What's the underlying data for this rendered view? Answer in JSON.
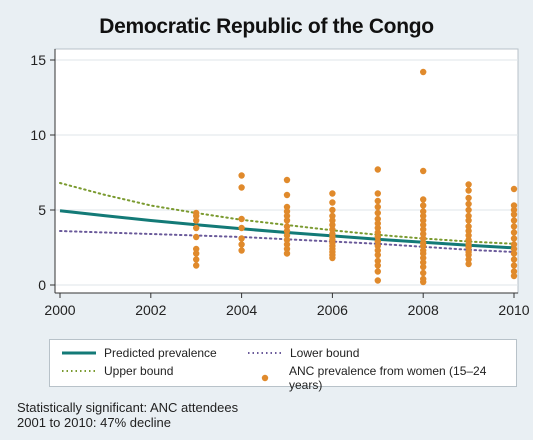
{
  "chart_data": {
    "type": "scatter",
    "title": "Democratic Republic of the Congo",
    "xlim": [
      2000,
      2010
    ],
    "ylim": [
      0,
      15
    ],
    "x_ticks": [
      "2000",
      "2002",
      "2004",
      "2006",
      "2008",
      "2010"
    ],
    "y_ticks": [
      "0",
      "5",
      "10",
      "15"
    ],
    "grid": "horizontal",
    "series": [
      {
        "name": "Predicted prevalence",
        "kind": "line",
        "style": "solid",
        "color": "#137a77",
        "x": [
          2000,
          2001,
          2002,
          2003,
          2004,
          2005,
          2006,
          2007,
          2008,
          2009,
          2010
        ],
        "y": [
          4.95,
          4.62,
          4.3,
          4.02,
          3.75,
          3.5,
          3.27,
          3.05,
          2.85,
          2.65,
          2.47
        ]
      },
      {
        "name": "Upper bound",
        "kind": "line",
        "style": "dotted",
        "color": "#7a9a2f",
        "x": [
          2000,
          2001,
          2002,
          2003,
          2004,
          2005,
          2006,
          2007,
          2008,
          2009,
          2010
        ],
        "y": [
          6.8,
          6.0,
          5.3,
          4.8,
          4.35,
          4.0,
          3.65,
          3.35,
          3.1,
          2.9,
          2.75
        ]
      },
      {
        "name": "Lower bound",
        "kind": "line",
        "style": "dotted",
        "color": "#6a5a9a",
        "x": [
          2000,
          2001,
          2002,
          2003,
          2004,
          2005,
          2006,
          2007,
          2008,
          2009,
          2010
        ],
        "y": [
          3.6,
          3.5,
          3.4,
          3.3,
          3.2,
          3.05,
          2.9,
          2.75,
          2.55,
          2.35,
          2.2
        ]
      },
      {
        "name": "ANC prevalence from women (15–24 years)",
        "kind": "scatter",
        "color": "#e08a2c",
        "points": [
          [
            2003,
            4.8
          ],
          [
            2003,
            4.6
          ],
          [
            2003,
            4.3
          ],
          [
            2003,
            3.8
          ],
          [
            2003,
            3.2
          ],
          [
            2003,
            2.4
          ],
          [
            2003,
            2.1
          ],
          [
            2003,
            1.7
          ],
          [
            2003,
            1.3
          ],
          [
            2004,
            7.3
          ],
          [
            2004,
            6.5
          ],
          [
            2004,
            4.4
          ],
          [
            2004,
            3.8
          ],
          [
            2004,
            3.1
          ],
          [
            2004,
            2.7
          ],
          [
            2004,
            2.3
          ],
          [
            2005,
            7.0
          ],
          [
            2005,
            6.0
          ],
          [
            2005,
            5.2
          ],
          [
            2005,
            4.9
          ],
          [
            2005,
            4.6
          ],
          [
            2005,
            4.3
          ],
          [
            2005,
            3.9
          ],
          [
            2005,
            3.6
          ],
          [
            2005,
            3.3
          ],
          [
            2005,
            3.0
          ],
          [
            2005,
            2.7
          ],
          [
            2005,
            2.4
          ],
          [
            2005,
            2.1
          ],
          [
            2006,
            6.1
          ],
          [
            2006,
            5.5
          ],
          [
            2006,
            5.0
          ],
          [
            2006,
            4.6
          ],
          [
            2006,
            4.3
          ],
          [
            2006,
            4.0
          ],
          [
            2006,
            3.7
          ],
          [
            2006,
            3.4
          ],
          [
            2006,
            3.2
          ],
          [
            2006,
            3.0
          ],
          [
            2006,
            2.8
          ],
          [
            2006,
            2.6
          ],
          [
            2006,
            2.4
          ],
          [
            2006,
            2.2
          ],
          [
            2006,
            2.0
          ],
          [
            2006,
            1.8
          ],
          [
            2007,
            7.7
          ],
          [
            2007,
            6.1
          ],
          [
            2007,
            5.6
          ],
          [
            2007,
            5.2
          ],
          [
            2007,
            4.8
          ],
          [
            2007,
            4.4
          ],
          [
            2007,
            4.1
          ],
          [
            2007,
            3.8
          ],
          [
            2007,
            3.5
          ],
          [
            2007,
            3.2
          ],
          [
            2007,
            2.9
          ],
          [
            2007,
            2.6
          ],
          [
            2007,
            2.3
          ],
          [
            2007,
            2.0
          ],
          [
            2007,
            1.6
          ],
          [
            2007,
            1.3
          ],
          [
            2007,
            0.9
          ],
          [
            2007,
            0.3
          ],
          [
            2008,
            14.2
          ],
          [
            2008,
            7.6
          ],
          [
            2008,
            5.7
          ],
          [
            2008,
            5.3
          ],
          [
            2008,
            4.9
          ],
          [
            2008,
            4.6
          ],
          [
            2008,
            4.3
          ],
          [
            2008,
            4.0
          ],
          [
            2008,
            3.7
          ],
          [
            2008,
            3.4
          ],
          [
            2008,
            3.1
          ],
          [
            2008,
            2.8
          ],
          [
            2008,
            2.6
          ],
          [
            2008,
            2.3
          ],
          [
            2008,
            2.1
          ],
          [
            2008,
            1.8
          ],
          [
            2008,
            1.5
          ],
          [
            2008,
            1.2
          ],
          [
            2008,
            0.8
          ],
          [
            2008,
            0.4
          ],
          [
            2008,
            0.2
          ],
          [
            2009,
            6.7
          ],
          [
            2009,
            6.3
          ],
          [
            2009,
            5.8
          ],
          [
            2009,
            5.4
          ],
          [
            2009,
            5.0
          ],
          [
            2009,
            4.6
          ],
          [
            2009,
            4.3
          ],
          [
            2009,
            3.9
          ],
          [
            2009,
            3.6
          ],
          [
            2009,
            3.3
          ],
          [
            2009,
            3.0
          ],
          [
            2009,
            2.7
          ],
          [
            2009,
            2.5
          ],
          [
            2009,
            2.2
          ],
          [
            2009,
            2.0
          ],
          [
            2009,
            1.7
          ],
          [
            2009,
            1.4
          ],
          [
            2010,
            6.4
          ],
          [
            2010,
            5.3
          ],
          [
            2010,
            5.0
          ],
          [
            2010,
            4.7
          ],
          [
            2010,
            4.3
          ],
          [
            2010,
            3.9
          ],
          [
            2010,
            3.5
          ],
          [
            2010,
            3.1
          ],
          [
            2010,
            2.7
          ],
          [
            2010,
            2.4
          ],
          [
            2010,
            2.1
          ],
          [
            2010,
            1.7
          ],
          [
            2010,
            1.3
          ],
          [
            2010,
            0.9
          ],
          [
            2010,
            0.6
          ]
        ]
      }
    ]
  },
  "legend": {
    "predicted": "Predicted prevalence",
    "upper": "Upper bound",
    "lower": "Lower bound",
    "anc": "ANC prevalence from women (15–24 years)"
  },
  "note": {
    "line1": "Statistically significant: ANC attendees",
    "line2": "2001 to 2010: 47% decline"
  }
}
